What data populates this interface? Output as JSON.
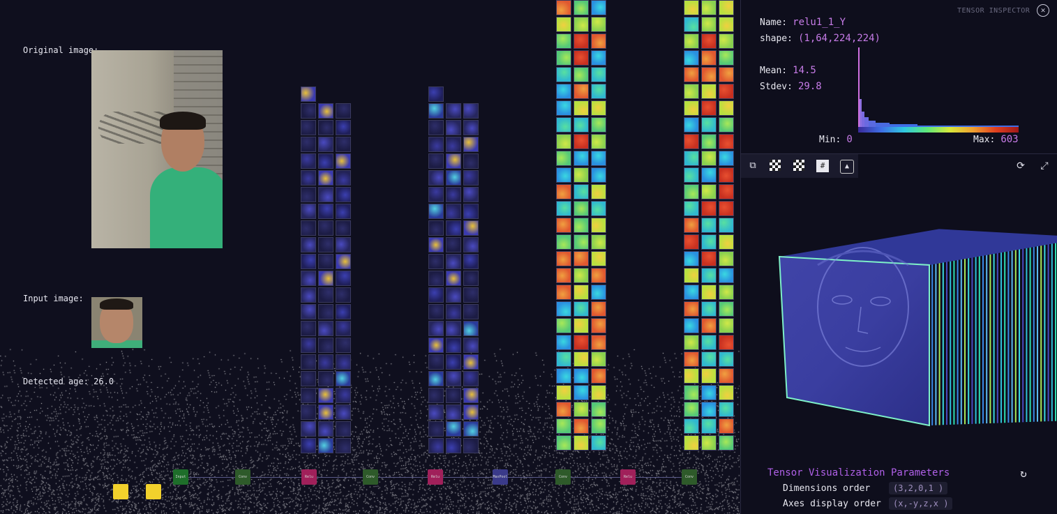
{
  "left_panel": {
    "original_label": "Original image:",
    "input_label": "Input image:",
    "detected_age_label": "Detected age: 26.0"
  },
  "graph_nodes": [
    {
      "kind": "input",
      "label": "Input"
    },
    {
      "kind": "conv",
      "label": "Conv"
    },
    {
      "kind": "relu",
      "label": "Relu"
    },
    {
      "kind": "conv",
      "label": "Conv"
    },
    {
      "kind": "relu",
      "label": "Relu"
    },
    {
      "kind": "norm",
      "label": "MaxPool"
    },
    {
      "kind": "conv",
      "label": "Conv"
    },
    {
      "kind": "relu",
      "label": "Relu"
    },
    {
      "kind": "conv",
      "label": "Conv"
    }
  ],
  "inspector": {
    "title": "TENSOR INSPECTOR",
    "name_label": "Name:",
    "name_value": "relu1_1_Y",
    "shape_label": "shape:",
    "shape_value": "(1,64,224,224)",
    "mean_label": "Mean:",
    "mean_value": "14.5",
    "stdev_label": "Stdev:",
    "stdev_value": "29.8",
    "min_label": "Min:",
    "min_value": "0",
    "max_label": "Max:",
    "max_value": "603",
    "toolbar": {
      "copy_icon": "copy-icon",
      "checker_icon": "checker-icon",
      "grid_icon": "grid-icon",
      "image_icon": "image-icon"
    },
    "params_title": "Tensor Visualization Parameters",
    "dims_order_label": "Dimensions order",
    "dims_order_value": "(3,2,0,1 )",
    "axes_order_label": "Axes display order",
    "axes_order_value": "(x,-y,z,x )"
  },
  "colors": {
    "background": "#0f0f1e",
    "accent": "#c77ce8",
    "purple_title": "#b060e8"
  }
}
